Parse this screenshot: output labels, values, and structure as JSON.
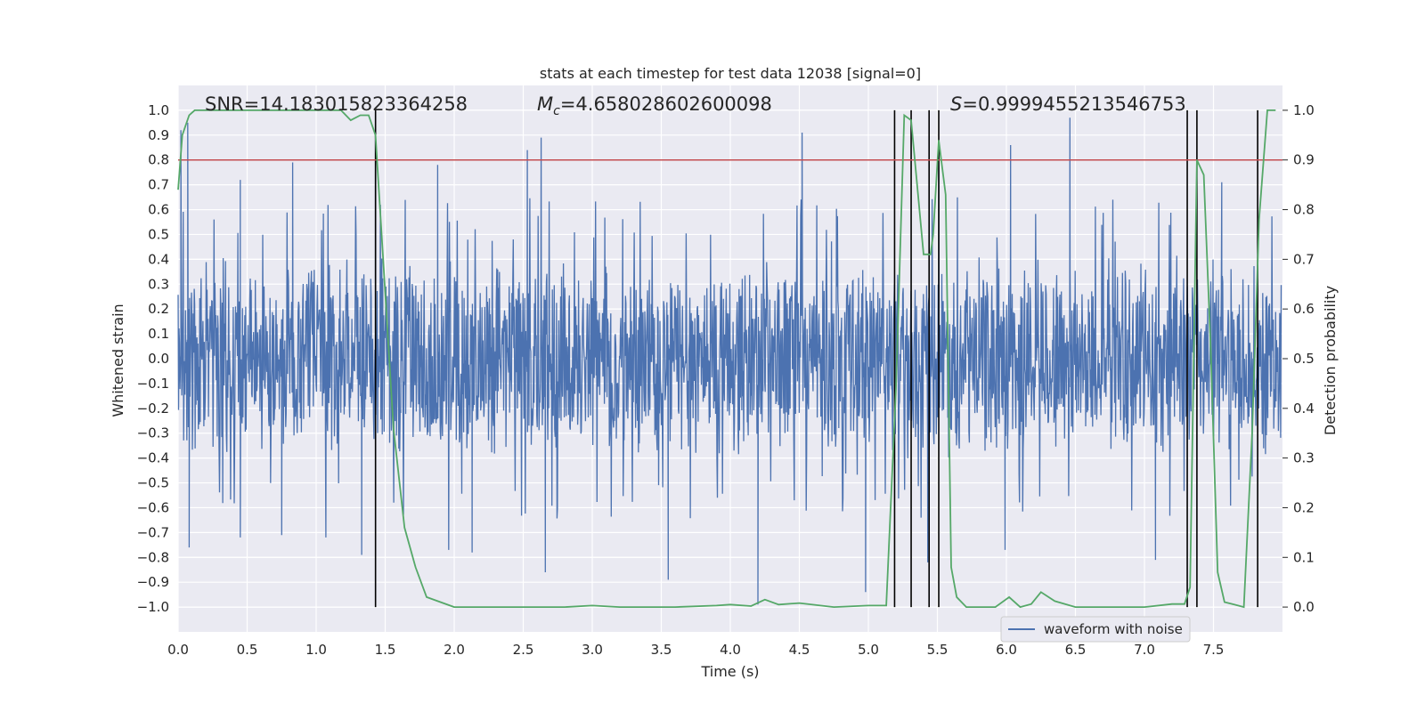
{
  "chart_data": {
    "type": "line",
    "title": "stats at each timestep for test data 12038 [signal=0]",
    "xlabel": "Time (s)",
    "ylabel_left": "Whitened strain",
    "ylabel_right": "Detection probability",
    "xlim": [
      0.0,
      8.0
    ],
    "ylim_left": [
      -1.1,
      1.1
    ],
    "ylim_right": [
      -0.05,
      1.05
    ],
    "grid": true,
    "xticks": [
      "0.0",
      "0.5",
      "1.0",
      "1.5",
      "2.0",
      "2.5",
      "3.0",
      "3.5",
      "4.0",
      "4.5",
      "5.0",
      "5.5",
      "6.0",
      "6.5",
      "7.0",
      "7.5"
    ],
    "xtick_values": [
      0.0,
      0.5,
      1.0,
      1.5,
      2.0,
      2.5,
      3.0,
      3.5,
      4.0,
      4.5,
      5.0,
      5.5,
      6.0,
      6.5,
      7.0,
      7.5
    ],
    "yticks_left": [
      "1.0",
      "0.9",
      "0.8",
      "0.7",
      "0.6",
      "0.5",
      "0.4",
      "0.3",
      "0.2",
      "0.1",
      "0.0",
      "−0.1",
      "−0.2",
      "−0.3",
      "−0.4",
      "−0.5",
      "−0.6",
      "−0.7",
      "−0.8",
      "−0.9",
      "−1.0"
    ],
    "ytick_values_left": [
      1.0,
      0.9,
      0.8,
      0.7,
      0.6,
      0.5,
      0.4,
      0.3,
      0.2,
      0.1,
      0.0,
      -0.1,
      -0.2,
      -0.3,
      -0.4,
      -0.5,
      -0.6,
      -0.7,
      -0.8,
      -0.9,
      -1.0
    ],
    "yticks_right": [
      "1.0",
      "0.9",
      "0.8",
      "0.7",
      "0.6",
      "0.5",
      "0.4",
      "0.3",
      "0.2",
      "0.1",
      "0.0"
    ],
    "ytick_values_right": [
      1.0,
      0.9,
      0.8,
      0.7,
      0.6,
      0.5,
      0.4,
      0.3,
      0.2,
      0.1,
      0.0
    ],
    "annotations": {
      "snr": "SNR=14.183015823364258",
      "mc_symbol": "M",
      "mc_sub": "c",
      "mc_value": "=4.658028602600098",
      "s_symbol": "S",
      "s_value": "=0.9999455213546753"
    },
    "legend": {
      "label": "waveform with noise",
      "placement": "lower-right"
    },
    "threshold_line": {
      "value": 0.9,
      "axis": "right",
      "color": "#c44e52"
    },
    "vertical_markers_s": [
      1.43,
      5.19,
      5.31,
      5.44,
      5.51,
      7.31,
      7.38,
      7.82
    ],
    "strain_series": {
      "name": "waveform with noise",
      "color": "#4c72b0",
      "x_range": [
        0.0,
        7.99
      ],
      "typical_envelope": [
        -0.42,
        0.42
      ],
      "peaks": [
        {
          "x": 0.02,
          "y": 0.92
        },
        {
          "x": 0.07,
          "y": 0.95
        },
        {
          "x": 0.08,
          "y": -0.76
        },
        {
          "x": 0.45,
          "y": 0.72
        },
        {
          "x": 0.45,
          "y": -0.72
        },
        {
          "x": 0.75,
          "y": -0.71
        },
        {
          "x": 0.83,
          "y": 0.79
        },
        {
          "x": 1.07,
          "y": -0.72
        },
        {
          "x": 1.33,
          "y": -0.79
        },
        {
          "x": 1.43,
          "y": 0.88
        },
        {
          "x": 1.88,
          "y": 0.78
        },
        {
          "x": 1.96,
          "y": -0.77
        },
        {
          "x": 2.13,
          "y": -0.78
        },
        {
          "x": 2.53,
          "y": 0.84
        },
        {
          "x": 2.63,
          "y": 0.89
        },
        {
          "x": 2.66,
          "y": -0.86
        },
        {
          "x": 3.55,
          "y": -0.89
        },
        {
          "x": 4.2,
          "y": -0.99
        },
        {
          "x": 4.52,
          "y": 0.91
        },
        {
          "x": 4.98,
          "y": -0.94
        },
        {
          "x": 5.43,
          "y": -0.82
        },
        {
          "x": 5.51,
          "y": 0.85
        },
        {
          "x": 5.99,
          "y": -0.77
        },
        {
          "x": 6.03,
          "y": 0.86
        },
        {
          "x": 6.46,
          "y": 0.97
        },
        {
          "x": 7.08,
          "y": -0.81
        },
        {
          "x": 7.56,
          "y": 0.71
        }
      ]
    },
    "probability_series": {
      "name": "Detection probability",
      "color": "#55a868",
      "x": [
        0.0,
        0.03,
        0.08,
        0.12,
        0.2,
        0.4,
        0.6,
        0.8,
        1.0,
        1.18,
        1.25,
        1.32,
        1.38,
        1.43,
        1.49,
        1.56,
        1.64,
        1.72,
        1.8,
        2.0,
        2.4,
        2.8,
        3.0,
        3.2,
        3.6,
        3.9,
        4.0,
        4.15,
        4.25,
        4.35,
        4.5,
        4.75,
        5.0,
        5.13,
        5.2,
        5.26,
        5.31,
        5.36,
        5.4,
        5.45,
        5.47,
        5.51,
        5.56,
        5.6,
        5.64,
        5.71,
        5.8,
        5.92,
        6.02,
        6.1,
        6.18,
        6.25,
        6.35,
        6.5,
        6.8,
        7.0,
        7.2,
        7.29,
        7.33,
        7.38,
        7.43,
        7.48,
        7.53,
        7.58,
        7.65,
        7.72,
        7.78,
        7.83,
        7.89,
        7.95
      ],
      "values": [
        0.84,
        0.95,
        0.99,
        1.0,
        1.0,
        1.0,
        1.0,
        1.0,
        1.0,
        1.0,
        0.98,
        0.99,
        0.99,
        0.95,
        0.68,
        0.36,
        0.16,
        0.08,
        0.02,
        0.0,
        0.0,
        0.0,
        0.003,
        0.0,
        0.0,
        0.003,
        0.005,
        0.002,
        0.015,
        0.005,
        0.008,
        0.0,
        0.003,
        0.003,
        0.44,
        0.99,
        0.98,
        0.83,
        0.71,
        0.71,
        0.75,
        0.94,
        0.83,
        0.08,
        0.02,
        0.0,
        0.0,
        0.0,
        0.02,
        0.0,
        0.006,
        0.03,
        0.012,
        0.0,
        0.0,
        0.0,
        0.006,
        0.006,
        0.04,
        0.9,
        0.87,
        0.52,
        0.07,
        0.01,
        0.005,
        0.0,
        0.35,
        0.78,
        1.0,
        1.0
      ]
    }
  }
}
